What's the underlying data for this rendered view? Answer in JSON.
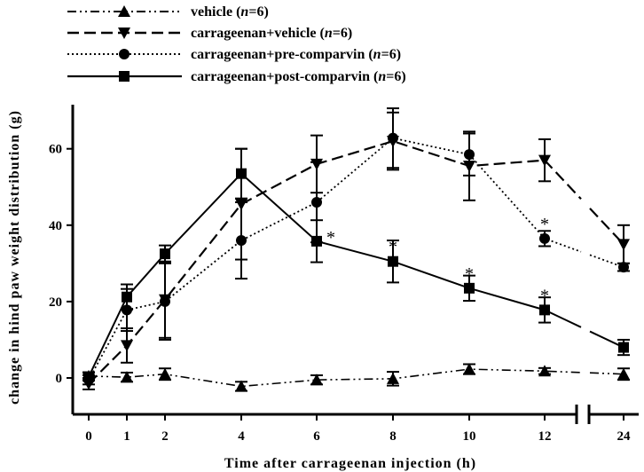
{
  "chart_data": {
    "type": "line",
    "title": "",
    "xlabel": "Time after carrageenan injection (h)",
    "ylabel": "change in hind paw weight distribution (g)",
    "ylim": [
      -8,
      73
    ],
    "x_ticks": [
      "0",
      "1",
      "2",
      "4",
      "6",
      "8",
      "10",
      "12",
      "24"
    ],
    "y_ticks": [
      "0",
      "20",
      "40",
      "60"
    ],
    "x_axis_break": "between 12 and 24",
    "grid": false,
    "legend_position": "top-left",
    "series": [
      {
        "name_prefix": "vehicle",
        "n_label": "n",
        "n_value": "=6",
        "marker": "triangle-up",
        "line_style": "dash-dot",
        "x": [
          0,
          1,
          2,
          4,
          6,
          8,
          10,
          12,
          24
        ],
        "y": [
          0.5,
          0.2,
          1.0,
          -2.2,
          -0.5,
          -0.2,
          2.3,
          1.8,
          1.0
        ],
        "err": [
          1.0,
          1.2,
          1.5,
          1.2,
          1.2,
          1.8,
          1.3,
          0.8,
          1.5
        ]
      },
      {
        "name_prefix": "carrageenan+vehicle",
        "n_label": "n",
        "n_value": "=6",
        "marker": "triangle-down",
        "line_style": "dashed",
        "x": [
          0,
          1,
          2,
          4,
          6,
          8,
          10,
          12,
          24
        ],
        "y": [
          -1.5,
          8.5,
          20.5,
          45.5,
          56.0,
          62.0,
          55.5,
          57.0,
          35.0
        ],
        "err": [
          1.5,
          4.5,
          10.0,
          14.5,
          7.5,
          7.5,
          9.0,
          5.5,
          5.0
        ]
      },
      {
        "name_prefix": "carrageenan+pre-comparvin",
        "n_label": "n",
        "n_value": "=6",
        "marker": "circle",
        "line_style": "dotted",
        "x": [
          0,
          1,
          2,
          4,
          6,
          8,
          10,
          12,
          24
        ],
        "y": [
          -0.5,
          17.8,
          20.0,
          36.0,
          46.0,
          62.8,
          58.5,
          36.5,
          29.0
        ],
        "err": [
          1.2,
          5.5,
          10.0,
          10.0,
          10.5,
          7.8,
          5.5,
          2.0,
          1.0
        ]
      },
      {
        "name_prefix": "carrageenan+post-comparvin",
        "n_label": "n",
        "n_value": "=6",
        "marker": "square",
        "line_style": "solid",
        "x": [
          0,
          1,
          2,
          4,
          6,
          8,
          10,
          12,
          24
        ],
        "y": [
          0.3,
          21.2,
          32.5,
          53.5,
          35.8,
          30.5,
          23.5,
          17.8,
          8.0
        ],
        "err": [
          1.0,
          3.3,
          2.2,
          6.5,
          5.5,
          5.5,
          3.3,
          3.3,
          2.0
        ]
      }
    ],
    "annotations": [
      {
        "text": "*",
        "x": 6,
        "y": 35.8
      },
      {
        "text": "*",
        "x": 8,
        "y": 30.5
      },
      {
        "text": "*",
        "x": 10,
        "y": 23.5
      },
      {
        "text": "*",
        "x": 12,
        "y": 36.5
      },
      {
        "text": "*",
        "x": 12,
        "y": 17.8
      }
    ]
  }
}
